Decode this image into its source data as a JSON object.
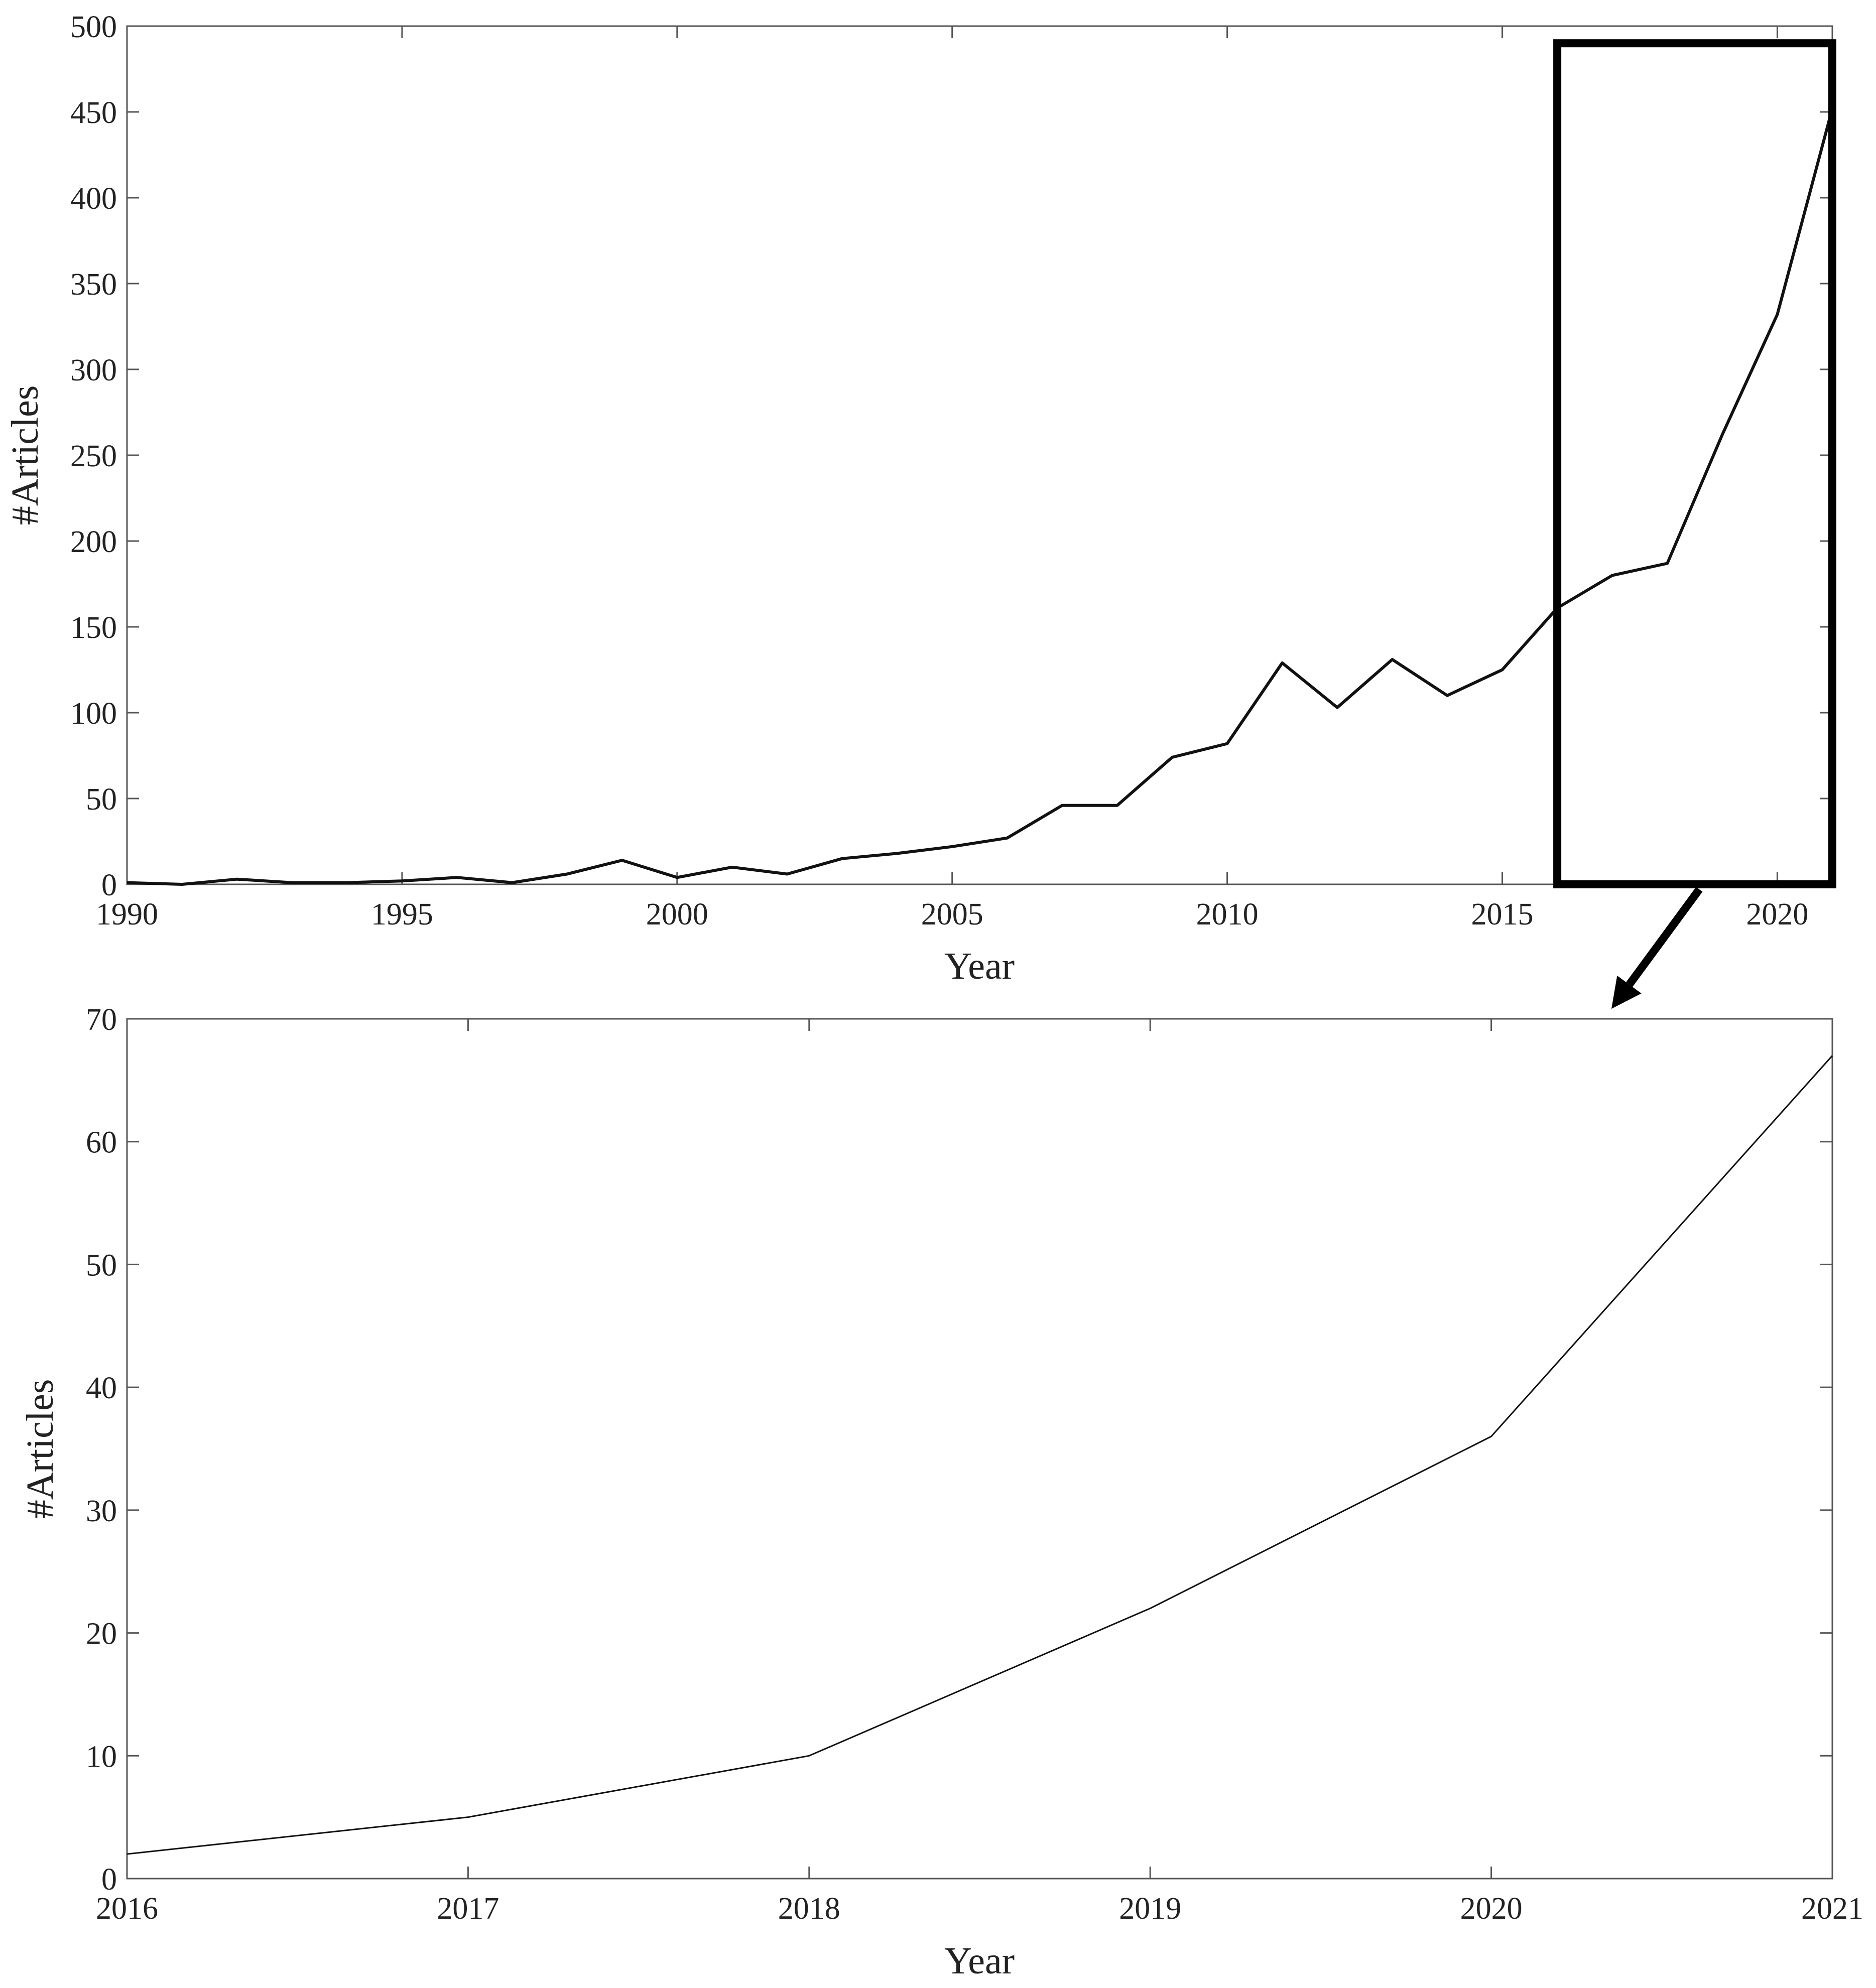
{
  "chart_data": [
    {
      "type": "line",
      "title": "",
      "xlabel": "Year",
      "ylabel": "#Articles",
      "xlim": [
        1990,
        2021
      ],
      "ylim": [
        0,
        500
      ],
      "xticks": [
        1990,
        1995,
        2000,
        2005,
        2010,
        2015,
        2020
      ],
      "yticks": [
        0,
        50,
        100,
        150,
        200,
        250,
        300,
        350,
        400,
        450,
        500
      ],
      "grid": false,
      "series": [
        {
          "name": "#Articles",
          "x": [
            1990,
            1991,
            1992,
            1993,
            1994,
            1995,
            1996,
            1997,
            1998,
            1999,
            2000,
            2001,
            2002,
            2003,
            2004,
            2005,
            2006,
            2007,
            2008,
            2009,
            2010,
            2011,
            2012,
            2013,
            2014,
            2015,
            2016,
            2017,
            2018,
            2019,
            2020,
            2021
          ],
          "values": [
            1,
            0,
            3,
            1,
            1,
            2,
            4,
            1,
            6,
            14,
            4,
            10,
            6,
            15,
            18,
            22,
            27,
            46,
            46,
            74,
            82,
            129,
            103,
            131,
            110,
            125,
            161,
            180,
            187,
            262,
            332,
            452
          ]
        }
      ],
      "annotation": {
        "kind": "zoom-box",
        "x_range": [
          2016,
          2021
        ],
        "y_range": [
          0,
          490
        ],
        "target": "bottom-chart"
      }
    },
    {
      "type": "line",
      "title": "",
      "xlabel": "Year",
      "ylabel": "#Articles",
      "xlim": [
        2016,
        2021
      ],
      "ylim": [
        0,
        70
      ],
      "xticks": [
        2016,
        2017,
        2018,
        2019,
        2020,
        2021
      ],
      "yticks": [
        0,
        10,
        20,
        30,
        40,
        50,
        60,
        70
      ],
      "grid": false,
      "series": [
        {
          "name": "#Articles",
          "x": [
            2016,
            2017,
            2018,
            2019,
            2020,
            2021
          ],
          "values": [
            2,
            5,
            10,
            22,
            36,
            67
          ]
        }
      ]
    }
  ]
}
